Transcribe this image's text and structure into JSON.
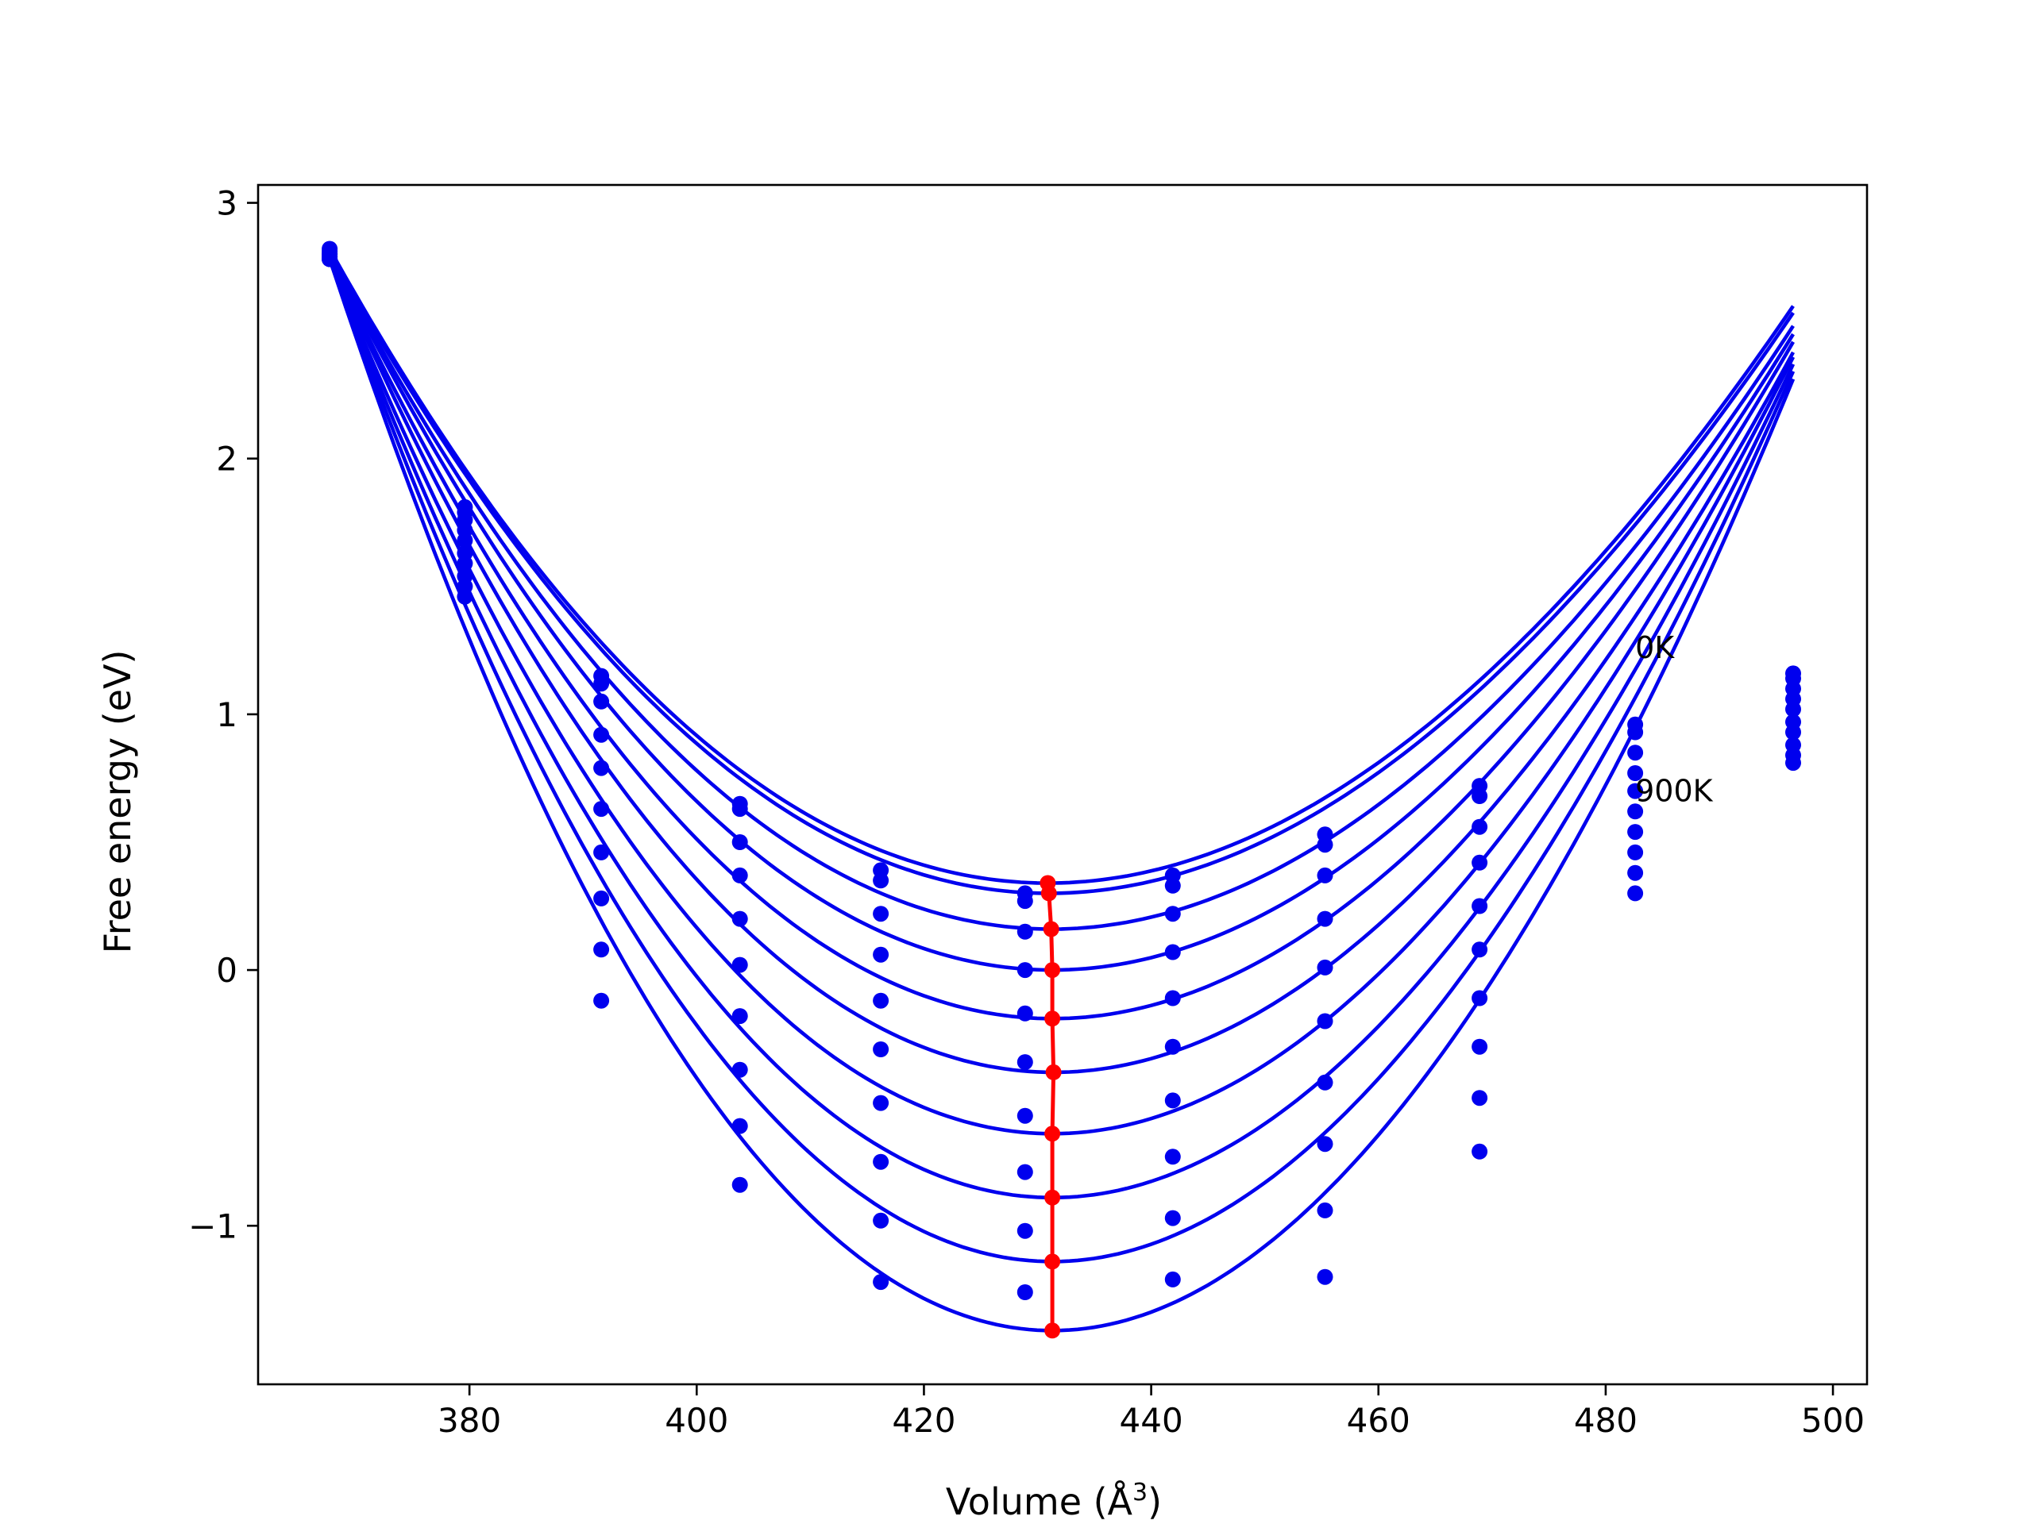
{
  "chart_data": {
    "type": "line",
    "title": "",
    "xlabel": "Volume (Å",
    "xlabel_sup": "3",
    "xlabel_close": ")",
    "ylabel": "Free energy (eV)",
    "xlim": [
      361.4,
      503.0
    ],
    "ylim": [
      -1.62,
      3.07
    ],
    "xticks": [
      380,
      400,
      420,
      440,
      460,
      480,
      500
    ],
    "yticks": [
      -1,
      0,
      1,
      2,
      3
    ],
    "ytick_labels": [
      "−1",
      "0",
      "1",
      "2",
      "3"
    ],
    "grid": false,
    "legend": "none",
    "colors": {
      "fit": "#0000ee",
      "points": "#0000ee",
      "minima": "#ff0000",
      "axes": "#000000"
    },
    "annotations": [
      {
        "text": "0K",
        "x": 482.6,
        "y": 1.22
      },
      {
        "text": "900K",
        "x": 482.6,
        "y": 0.66
      }
    ],
    "volumes": [
      367.7,
      379.6,
      391.6,
      403.8,
      416.2,
      428.9,
      441.9,
      455.3,
      468.9,
      482.6,
      496.5
    ],
    "series": [
      {
        "energies": [
          2.82,
          1.81,
          1.15,
          0.65,
          0.39,
          0.3,
          0.37,
          0.53,
          0.72,
          0.96,
          1.16
        ],
        "min_volume": 430.9,
        "min_energy": 0.34
      },
      {
        "energies": [
          2.81,
          1.79,
          1.12,
          0.63,
          0.35,
          0.27,
          0.33,
          0.49,
          0.68,
          0.93,
          1.14
        ],
        "min_volume": 431.0,
        "min_energy": 0.3
      },
      {
        "energies": [
          2.8,
          1.76,
          1.05,
          0.5,
          0.22,
          0.15,
          0.22,
          0.37,
          0.56,
          0.85,
          1.1
        ],
        "min_volume": 431.2,
        "min_energy": 0.16
      },
      {
        "energies": [
          2.8,
          1.72,
          0.92,
          0.37,
          0.06,
          0.0,
          0.07,
          0.2,
          0.42,
          0.77,
          1.06
        ],
        "min_volume": 431.3,
        "min_energy": 0.0
      },
      {
        "energies": [
          2.79,
          1.68,
          0.79,
          0.2,
          -0.12,
          -0.17,
          -0.11,
          0.01,
          0.25,
          0.7,
          1.02
        ],
        "min_volume": 431.3,
        "min_energy": -0.19
      },
      {
        "energies": [
          2.79,
          1.63,
          0.63,
          0.02,
          -0.31,
          -0.36,
          -0.3,
          -0.2,
          0.08,
          0.62,
          0.97
        ],
        "min_volume": 431.4,
        "min_energy": -0.4
      },
      {
        "energies": [
          2.78,
          1.59,
          0.46,
          -0.18,
          -0.52,
          -0.57,
          -0.51,
          -0.44,
          -0.11,
          0.54,
          0.93
        ],
        "min_volume": 431.3,
        "min_energy": -0.64
      },
      {
        "energies": [
          2.78,
          1.54,
          0.28,
          -0.39,
          -0.75,
          -0.79,
          -0.73,
          -0.68,
          -0.3,
          0.46,
          0.88
        ],
        "min_volume": 431.3,
        "min_energy": -0.89
      },
      {
        "energies": [
          2.78,
          1.5,
          0.08,
          -0.61,
          -0.98,
          -1.02,
          -0.97,
          -0.94,
          -0.5,
          0.38,
          0.84
        ],
        "min_volume": 431.3,
        "min_energy": -1.14
      },
      {
        "energies": [
          2.78,
          1.46,
          -0.12,
          -0.84,
          -1.22,
          -1.26,
          -1.21,
          -1.2,
          -0.71,
          0.3,
          0.81
        ],
        "min_volume": 431.3,
        "min_energy": -1.41
      }
    ]
  }
}
